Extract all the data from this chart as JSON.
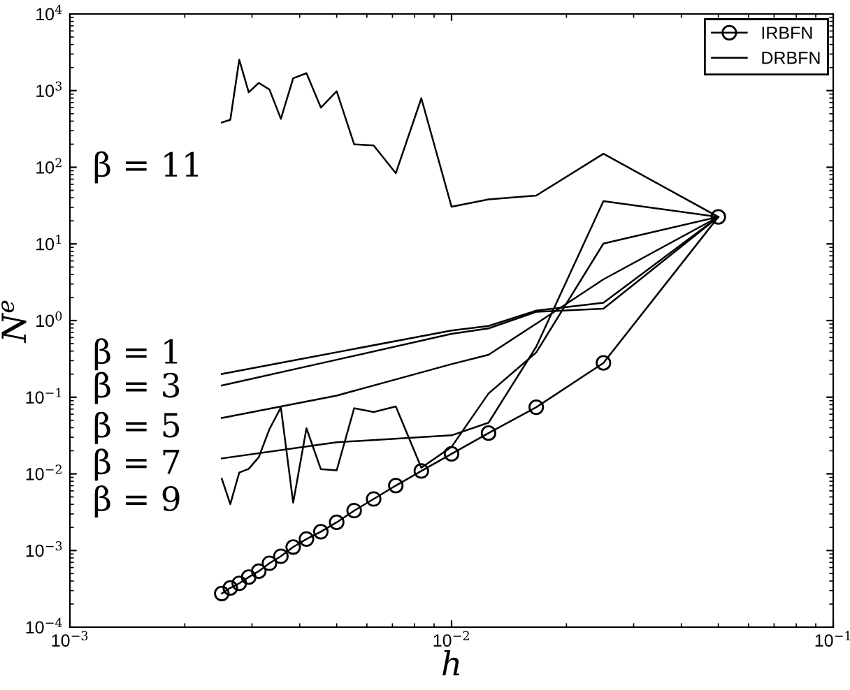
{
  "chart_data": {
    "type": "line",
    "xlabel": "h",
    "ylabel": "N$^{e}$",
    "log": "xy",
    "grid": false,
    "legend": "top right",
    "xlim": [
      0.001,
      0.1
    ],
    "ylim": [
      0.0001,
      10000
    ],
    "xticks": [
      {
        "value": 0.001,
        "label": "10$^{−3}$"
      },
      {
        "value": 0.01,
        "label": "10$^{−2}$"
      },
      {
        "value": 0.1,
        "label": "10$^{−1}$"
      }
    ],
    "yticks": [
      {
        "value": 0.0001,
        "label": "10$^{−4}$"
      },
      {
        "value": 0.001,
        "label": "10$^{−3}$"
      },
      {
        "value": 0.01,
        "label": "10$^{−2}$"
      },
      {
        "value": 0.1,
        "label": "10$^{−1}$"
      },
      {
        "value": 1,
        "label": "10$^{0}$"
      },
      {
        "value": 10,
        "label": "10$^{1}$"
      },
      {
        "value": 100,
        "label": "10$^{2}$"
      },
      {
        "value": 1000,
        "label": "10$^{3}$"
      },
      {
        "value": 10000,
        "label": "10$^{4}$"
      }
    ],
    "series": [
      {
        "name": "IRBFN",
        "color": "#000000",
        "marker": "circle",
        "x": [
          0.0025,
          0.002632,
          0.002778,
          0.002941,
          0.003125,
          0.003333,
          0.003571,
          0.003846,
          0.004167,
          0.004545,
          0.005,
          0.005556,
          0.00625,
          0.007143,
          0.008333,
          0.01,
          0.0125,
          0.016667,
          0.025,
          0.05
        ],
        "values": [
          0.000275,
          0.000325,
          0.000373,
          0.000449,
          0.000537,
          0.000682,
          0.000841,
          0.00111,
          0.00141,
          0.00176,
          0.00233,
          0.00331,
          0.0047,
          0.00703,
          0.0109,
          0.0182,
          0.034,
          0.074,
          0.28,
          22.5
        ]
      },
      {
        "name": "DRBFN",
        "color": "#000000",
        "marker": "none",
        "x": [
          0.0025,
          0.005,
          0.01,
          0.0125,
          0.016667,
          0.025,
          0.05
        ],
        "values": [
          0.201,
          0.386,
          0.74,
          0.85,
          1.35,
          1.71,
          22.5
        ]
      },
      {
        "color": "#000000",
        "marker": "none",
        "x": [
          0.0025,
          0.005,
          0.01,
          0.0125,
          0.016667,
          0.025,
          0.05
        ],
        "values": [
          0.142,
          0.308,
          0.67,
          0.79,
          1.3,
          1.43,
          22.5
        ]
      },
      {
        "color": "#000000",
        "marker": "none",
        "x": [
          0.0025,
          0.005,
          0.01,
          0.0125,
          0.016667,
          0.025,
          0.05
        ],
        "values": [
          0.0535,
          0.105,
          0.27,
          0.358,
          0.91,
          3.45,
          22.5
        ]
      },
      {
        "color": "#000000",
        "marker": "none",
        "x": [
          0.0025,
          0.005,
          0.01,
          0.0125,
          0.016667,
          0.025,
          0.05
        ],
        "values": [
          0.0159,
          0.0258,
          0.0318,
          0.0465,
          0.455,
          36.1,
          22.5
        ]
      },
      {
        "color": "#000000",
        "marker": "none",
        "x": [
          0.0025,
          0.002632,
          0.002778,
          0.002941,
          0.003125,
          0.003333,
          0.003571,
          0.003846,
          0.004167,
          0.004545,
          0.005,
          0.005556,
          0.00625,
          0.007143,
          0.008333,
          0.01,
          0.0125,
          0.016667,
          0.025,
          0.05
        ],
        "values": [
          0.00867,
          0.00402,
          0.0104,
          0.0116,
          0.0165,
          0.0383,
          0.0736,
          0.0042,
          0.0393,
          0.0115,
          0.0111,
          0.0718,
          0.0641,
          0.0758,
          0.012,
          0.0225,
          0.112,
          0.384,
          10.1,
          22.5
        ]
      },
      {
        "color": "#000000",
        "marker": "none",
        "x": [
          0.0025,
          0.002632,
          0.002778,
          0.002941,
          0.003125,
          0.003333,
          0.003571,
          0.003846,
          0.004167,
          0.004545,
          0.005,
          0.005556,
          0.00625,
          0.007143,
          0.008333,
          0.01,
          0.0125,
          0.016667,
          0.025,
          0.05
        ],
        "values": [
          383,
          416,
          2530,
          951,
          1259,
          1035,
          429,
          1446,
          1690,
          600,
          980,
          199,
          193,
          83.5,
          794,
          30.5,
          38.1,
          42.7,
          150,
          22.5
        ]
      }
    ],
    "annotations": [
      "β = 11",
      "β = 1",
      "β = 3",
      "β = 5",
      "β = 7",
      "β = 9"
    ]
  }
}
